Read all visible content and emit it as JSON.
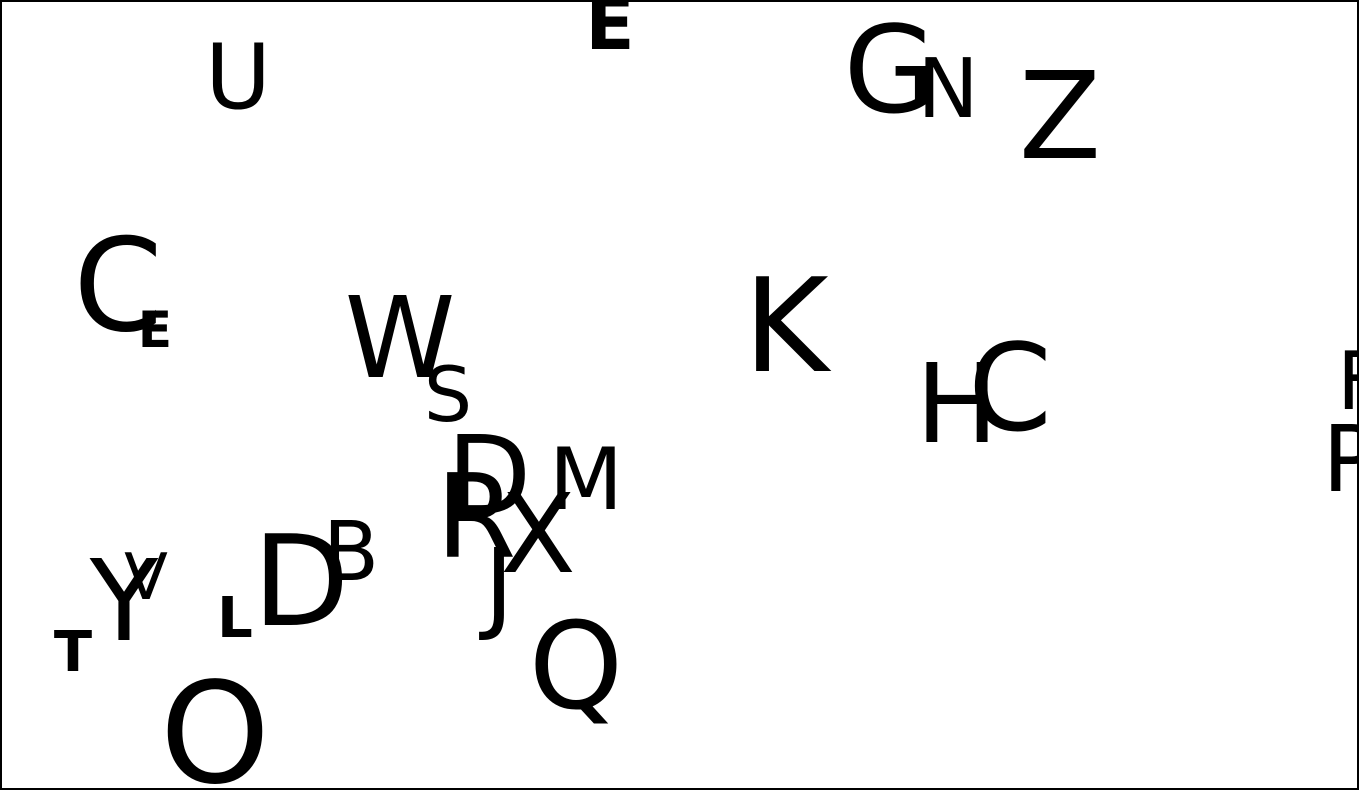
{
  "canvas": {
    "background": "#ffffff",
    "border_color": "#000000",
    "letter_color": "#000000"
  },
  "letters": [
    {
      "id": "e-top",
      "char": "E"
    },
    {
      "id": "u",
      "char": "U"
    },
    {
      "id": "g",
      "char": "G"
    },
    {
      "id": "n",
      "char": "N"
    },
    {
      "id": "z",
      "char": "Z"
    },
    {
      "id": "c-left",
      "char": "C"
    },
    {
      "id": "e-small",
      "char": "E"
    },
    {
      "id": "w",
      "char": "W"
    },
    {
      "id": "s",
      "char": "S"
    },
    {
      "id": "k",
      "char": "K"
    },
    {
      "id": "h",
      "char": "H"
    },
    {
      "id": "c-right",
      "char": "C"
    },
    {
      "id": "f-partial",
      "char": "F"
    },
    {
      "id": "p",
      "char": "P"
    },
    {
      "id": "d-center",
      "char": "D"
    },
    {
      "id": "m",
      "char": "M"
    },
    {
      "id": "r",
      "char": "R"
    },
    {
      "id": "x",
      "char": "X"
    },
    {
      "id": "j",
      "char": "J"
    },
    {
      "id": "b",
      "char": "B"
    },
    {
      "id": "d-left",
      "char": "D"
    },
    {
      "id": "v",
      "char": "V"
    },
    {
      "id": "y",
      "char": "Y"
    },
    {
      "id": "l",
      "char": "L"
    },
    {
      "id": "t",
      "char": "T"
    },
    {
      "id": "q",
      "char": "Q"
    },
    {
      "id": "o",
      "char": "O"
    }
  ]
}
